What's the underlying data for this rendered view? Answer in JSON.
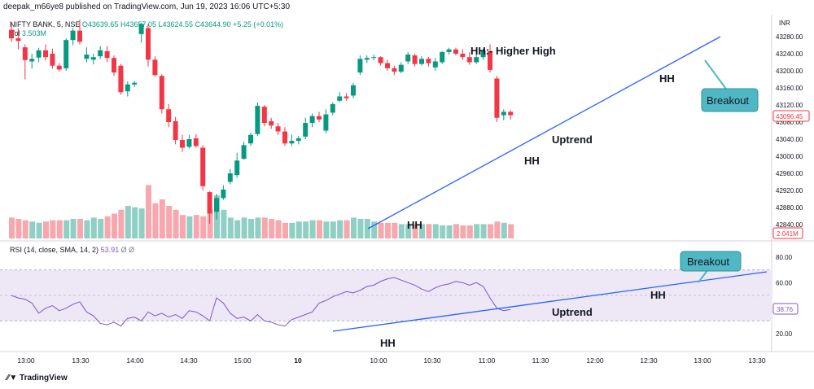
{
  "header": {
    "text": "deepak_m66ye8 published on TradingView.com, Jun 19, 2023 16:06 UTC+5:30"
  },
  "legend": {
    "symbol": "NIFTY BANK, 5, NSE",
    "open": "O43639.65",
    "high": "H43657.05",
    "low": "L43624.55",
    "close": "C43644.90",
    "change": "+5.25 (+0.01%)",
    "vol_label": "Vol",
    "vol_value": "3.503M",
    "rsi_label": "RSI (14, close, SMA, 14, 2)",
    "rsi_value": "53.91",
    "rsi_extra": "Ø Ø"
  },
  "axis": {
    "currency": "INR",
    "price_ticks": [
      43280,
      43240,
      43200,
      43160,
      43120,
      43080,
      43040,
      43000,
      42960,
      42920,
      42880,
      42840
    ],
    "price_labels": [
      "43280.00",
      "43240.00",
      "43200.00",
      "43160.00",
      "43120.00",
      "43080.00",
      "43040.00",
      "43000.00",
      "42960.00",
      "42920.00",
      "42880.00",
      "42840.00"
    ],
    "current_price": "43096.45",
    "current_volume": "2.041M",
    "rsi_ticks": [
      80,
      60,
      40,
      20
    ],
    "rsi_labels": [
      "80.00",
      "60.00",
      "40.00",
      "20.00"
    ],
    "rsi_current": "38.76",
    "time_labels": [
      "13:00",
      "13:30",
      "14:00",
      "14:30",
      "15:00",
      "10",
      "10:00",
      "10:30",
      "11:00",
      "11:30",
      "12:00",
      "12:30",
      "13:00",
      "13:30"
    ]
  },
  "annotations": {
    "hh_definition": "HH:- Higher High",
    "hh": "HH",
    "uptrend": "Uptrend",
    "breakout": "Breakout"
  },
  "footer": {
    "logo": "TradingView"
  },
  "colors": {
    "up": "#089981",
    "down": "#f23645",
    "vol_up": "#8fcfc4",
    "vol_down": "#f7a7ad",
    "trend": "#2962ff",
    "rsi": "#7e57c2",
    "rsi_band": "#ede7f6",
    "callout": "#4fb8c4"
  },
  "chart_data": {
    "type": "candlestick",
    "interval": "5 min",
    "candles": [
      {
        "o": 43296,
        "h": 43312,
        "l": 43268,
        "c": 43276
      },
      {
        "o": 43276,
        "h": 43300,
        "l": 43250,
        "c": 43270
      },
      {
        "o": 43255,
        "h": 43262,
        "l": 43180,
        "c": 43225
      },
      {
        "o": 43222,
        "h": 43240,
        "l": 43205,
        "c": 43228
      },
      {
        "o": 43231,
        "h": 43254,
        "l": 43220,
        "c": 43248
      },
      {
        "o": 43248,
        "h": 43262,
        "l": 43224,
        "c": 43232
      },
      {
        "o": 43240,
        "h": 43252,
        "l": 43205,
        "c": 43212
      },
      {
        "o": 43212,
        "h": 43218,
        "l": 43198,
        "c": 43203
      },
      {
        "o": 43206,
        "h": 43276,
        "l": 43200,
        "c": 43272
      },
      {
        "o": 43272,
        "h": 43300,
        "l": 43260,
        "c": 43294
      },
      {
        "o": 43294,
        "h": 43320,
        "l": 43262,
        "c": 43268
      },
      {
        "o": 43228,
        "h": 43255,
        "l": 43220,
        "c": 43238
      },
      {
        "o": 43226,
        "h": 43240,
        "l": 43215,
        "c": 43232
      },
      {
        "o": 43234,
        "h": 43258,
        "l": 43228,
        "c": 43248
      },
      {
        "o": 43246,
        "h": 43258,
        "l": 43220,
        "c": 43230
      },
      {
        "o": 43230,
        "h": 43236,
        "l": 43188,
        "c": 43196
      },
      {
        "o": 43212,
        "h": 43216,
        "l": 43144,
        "c": 43150
      },
      {
        "o": 43152,
        "h": 43175,
        "l": 43140,
        "c": 43168
      },
      {
        "o": 43168,
        "h": 43176,
        "l": 43162,
        "c": 43172
      },
      {
        "o": 43286,
        "h": 43312,
        "l": 43266,
        "c": 43310
      },
      {
        "o": 43300,
        "h": 43310,
        "l": 43210,
        "c": 43226
      },
      {
        "o": 43226,
        "h": 43234,
        "l": 43186,
        "c": 43190
      },
      {
        "o": 43188,
        "h": 43192,
        "l": 43100,
        "c": 43110
      },
      {
        "o": 43110,
        "h": 43122,
        "l": 43068,
        "c": 43080
      },
      {
        "o": 43082,
        "h": 43092,
        "l": 43028,
        "c": 43038
      },
      {
        "o": 43038,
        "h": 43050,
        "l": 43010,
        "c": 43020
      },
      {
        "o": 43022,
        "h": 43050,
        "l": 43018,
        "c": 43040
      },
      {
        "o": 43042,
        "h": 43052,
        "l": 43020,
        "c": 43024
      },
      {
        "o": 43020,
        "h": 43026,
        "l": 42920,
        "c": 42930
      },
      {
        "o": 42916,
        "h": 42918,
        "l": 42842,
        "c": 42866
      },
      {
        "o": 42870,
        "h": 42912,
        "l": 42852,
        "c": 42902
      },
      {
        "o": 42902,
        "h": 42932,
        "l": 42898,
        "c": 42922
      },
      {
        "o": 42940,
        "h": 42970,
        "l": 42934,
        "c": 42960
      },
      {
        "o": 42956,
        "h": 43008,
        "l": 42950,
        "c": 42990
      },
      {
        "o": 42994,
        "h": 43034,
        "l": 42992,
        "c": 43026
      },
      {
        "o": 43030,
        "h": 43055,
        "l": 43024,
        "c": 43050
      },
      {
        "o": 43052,
        "h": 43126,
        "l": 43048,
        "c": 43118
      },
      {
        "o": 43116,
        "h": 43120,
        "l": 43070,
        "c": 43078
      },
      {
        "o": 43082,
        "h": 43090,
        "l": 43064,
        "c": 43072
      },
      {
        "o": 43070,
        "h": 43078,
        "l": 43050,
        "c": 43058
      },
      {
        "o": 43058,
        "h": 43068,
        "l": 43024,
        "c": 43030
      },
      {
        "o": 43030,
        "h": 43050,
        "l": 43024,
        "c": 43036
      },
      {
        "o": 43036,
        "h": 43048,
        "l": 43028,
        "c": 43042
      },
      {
        "o": 43046,
        "h": 43090,
        "l": 43040,
        "c": 43078
      },
      {
        "o": 43078,
        "h": 43100,
        "l": 43068,
        "c": 43094
      },
      {
        "o": 43094,
        "h": 43104,
        "l": 43080,
        "c": 43086
      },
      {
        "o": 43060,
        "h": 43110,
        "l": 43054,
        "c": 43098
      },
      {
        "o": 43102,
        "h": 43126,
        "l": 43096,
        "c": 43122
      },
      {
        "o": 43130,
        "h": 43150,
        "l": 43126,
        "c": 43140
      },
      {
        "o": 43140,
        "h": 43148,
        "l": 43130,
        "c": 43136
      },
      {
        "o": 43142,
        "h": 43172,
        "l": 43136,
        "c": 43166
      },
      {
        "o": 43196,
        "h": 43236,
        "l": 43190,
        "c": 43228
      },
      {
        "o": 43226,
        "h": 43236,
        "l": 43218,
        "c": 43230
      },
      {
        "o": 43230,
        "h": 43238,
        "l": 43224,
        "c": 43232
      },
      {
        "o": 43232,
        "h": 43234,
        "l": 43212,
        "c": 43218
      },
      {
        "o": 43218,
        "h": 43226,
        "l": 43200,
        "c": 43206
      },
      {
        "o": 43206,
        "h": 43212,
        "l": 43190,
        "c": 43198
      },
      {
        "o": 43198,
        "h": 43220,
        "l": 43194,
        "c": 43214
      },
      {
        "o": 43222,
        "h": 43244,
        "l": 43216,
        "c": 43238
      },
      {
        "o": 43236,
        "h": 43240,
        "l": 43210,
        "c": 43216
      },
      {
        "o": 43216,
        "h": 43234,
        "l": 43212,
        "c": 43228
      },
      {
        "o": 43228,
        "h": 43232,
        "l": 43210,
        "c": 43218
      },
      {
        "o": 43208,
        "h": 43230,
        "l": 43200,
        "c": 43222
      },
      {
        "o": 43220,
        "h": 43246,
        "l": 43216,
        "c": 43244
      },
      {
        "o": 43244,
        "h": 43254,
        "l": 43238,
        "c": 43250
      },
      {
        "o": 43250,
        "h": 43254,
        "l": 43236,
        "c": 43240
      },
      {
        "o": 43240,
        "h": 43250,
        "l": 43226,
        "c": 43232
      },
      {
        "o": 43232,
        "h": 43244,
        "l": 43214,
        "c": 43220
      },
      {
        "o": 43220,
        "h": 43238,
        "l": 43216,
        "c": 43232
      },
      {
        "o": 43232,
        "h": 43252,
        "l": 43226,
        "c": 43248
      },
      {
        "o": 43246,
        "h": 43262,
        "l": 43196,
        "c": 43202
      },
      {
        "o": 43182,
        "h": 43188,
        "l": 43080,
        "c": 43090
      },
      {
        "o": 43096,
        "h": 43110,
        "l": 43084,
        "c": 43104
      },
      {
        "o": 43104,
        "h": 43108,
        "l": 43086,
        "c": 43096
      }
    ],
    "volume": [
      16,
      15,
      14,
      13,
      12,
      13,
      14,
      14,
      14,
      15,
      15,
      14,
      16,
      15,
      17,
      19,
      22,
      25,
      24,
      23,
      41,
      27,
      30,
      25,
      22,
      18,
      17,
      18,
      17,
      22,
      33,
      22,
      16,
      14,
      16,
      15,
      16,
      16,
      15,
      14,
      12,
      12,
      13,
      13,
      14,
      14,
      13,
      13,
      14,
      14,
      16,
      15,
      15,
      13,
      12,
      12,
      12,
      11,
      11,
      11,
      11,
      11,
      11,
      10,
      10,
      11,
      10,
      10,
      11,
      11,
      11,
      13,
      12,
      11
    ],
    "volume_unit": "M (approx, relative)",
    "rsi": [
      50,
      48,
      47,
      44,
      36,
      40,
      42,
      38,
      40,
      43,
      45,
      37,
      34,
      28,
      27,
      29,
      26,
      32,
      33,
      30,
      37,
      34,
      36,
      33,
      35,
      32,
      38,
      37,
      34,
      30,
      48,
      44,
      36,
      32,
      33,
      30,
      35,
      30,
      29,
      27,
      26,
      31,
      33,
      35,
      37,
      44,
      46,
      49,
      51,
      53,
      52,
      54,
      57,
      58,
      61,
      63,
      64,
      62,
      60,
      58,
      55,
      53,
      56,
      58,
      59,
      61,
      60,
      58,
      60,
      57,
      48,
      40,
      38,
      39
    ]
  }
}
